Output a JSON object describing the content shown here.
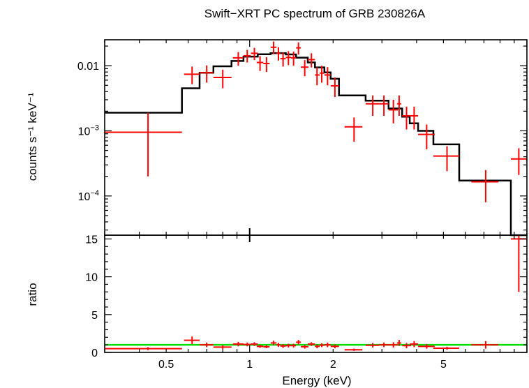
{
  "chart_data": [
    {
      "panel": "spectrum",
      "type": "scatter",
      "title": "Swift−XRT PC spectrum of GRB 230826A",
      "ylabel": "counts s⁻¹ keV⁻¹",
      "y_scale": "log",
      "xlim": [
        0.3,
        10
      ],
      "ylim": [
        2.5e-05,
        0.025
      ],
      "y_ticks": [
        {
          "value": 0.01,
          "label": "0.01",
          "base": "",
          "exp": ""
        },
        {
          "value": 0.001,
          "label": "",
          "base": "10",
          "exp": "−3"
        },
        {
          "value": 0.0001,
          "label": "",
          "base": "10",
          "exp": "−4"
        }
      ],
      "series": [
        {
          "role": "data",
          "color": "#ff0000",
          "points": [
            {
              "x": 0.43,
              "xlo": 0.3,
              "xhi": 0.57,
              "y": 0.00095,
              "ylo": 0.0002,
              "yhi": 0.0019
            },
            {
              "x": 0.62,
              "xlo": 0.58,
              "xhi": 0.66,
              "y": 0.0074,
              "ylo": 0.0052,
              "yhi": 0.0097
            },
            {
              "x": 0.7,
              "xlo": 0.66,
              "xhi": 0.74,
              "y": 0.0078,
              "ylo": 0.0055,
              "yhi": 0.0101
            },
            {
              "x": 0.8,
              "xlo": 0.74,
              "xhi": 0.86,
              "y": 0.0066,
              "ylo": 0.0045,
              "yhi": 0.0087
            },
            {
              "x": 0.91,
              "xlo": 0.87,
              "xhi": 0.95,
              "y": 0.0132,
              "ylo": 0.01,
              "yhi": 0.0162
            },
            {
              "x": 0.98,
              "xlo": 0.95,
              "xhi": 1.01,
              "y": 0.0142,
              "ylo": 0.0112,
              "yhi": 0.0175
            },
            {
              "x": 1.04,
              "xlo": 1.01,
              "xhi": 1.07,
              "y": 0.0155,
              "ylo": 0.0122,
              "yhi": 0.0188
            },
            {
              "x": 1.09,
              "xlo": 1.06,
              "xhi": 1.12,
              "y": 0.0112,
              "ylo": 0.0083,
              "yhi": 0.014
            },
            {
              "x": 1.15,
              "xlo": 1.12,
              "xhi": 1.18,
              "y": 0.0108,
              "ylo": 0.008,
              "yhi": 0.0135
            },
            {
              "x": 1.22,
              "xlo": 1.19,
              "xhi": 1.25,
              "y": 0.0192,
              "ylo": 0.015,
              "yhi": 0.0235
            },
            {
              "x": 1.27,
              "xlo": 1.25,
              "xhi": 1.29,
              "y": 0.0155,
              "ylo": 0.012,
              "yhi": 0.0192
            },
            {
              "x": 1.32,
              "xlo": 1.29,
              "xhi": 1.35,
              "y": 0.0128,
              "ylo": 0.0097,
              "yhi": 0.016
            },
            {
              "x": 1.38,
              "xlo": 1.35,
              "xhi": 1.41,
              "y": 0.0134,
              "ylo": 0.0102,
              "yhi": 0.0167
            },
            {
              "x": 1.44,
              "xlo": 1.41,
              "xhi": 1.47,
              "y": 0.0132,
              "ylo": 0.01,
              "yhi": 0.0165
            },
            {
              "x": 1.5,
              "xlo": 1.47,
              "xhi": 1.53,
              "y": 0.0188,
              "ylo": 0.0148,
              "yhi": 0.0228
            },
            {
              "x": 1.58,
              "xlo": 1.53,
              "xhi": 1.63,
              "y": 0.0095,
              "ylo": 0.0069,
              "yhi": 0.0122
            },
            {
              "x": 1.67,
              "xlo": 1.62,
              "xhi": 1.72,
              "y": 0.0124,
              "ylo": 0.0094,
              "yhi": 0.0155
            },
            {
              "x": 1.75,
              "xlo": 1.72,
              "xhi": 1.79,
              "y": 0.0072,
              "ylo": 0.005,
              "yhi": 0.0094
            },
            {
              "x": 1.82,
              "xlo": 1.79,
              "xhi": 1.86,
              "y": 0.0077,
              "ylo": 0.0055,
              "yhi": 0.01
            },
            {
              "x": 1.91,
              "xlo": 1.86,
              "xhi": 1.96,
              "y": 0.0072,
              "ylo": 0.005,
              "yhi": 0.0095
            },
            {
              "x": 2.03,
              "xlo": 1.96,
              "xhi": 2.1,
              "y": 0.0049,
              "ylo": 0.0033,
              "yhi": 0.0066
            },
            {
              "x": 2.38,
              "xlo": 2.2,
              "xhi": 2.55,
              "y": 0.00115,
              "ylo": 0.00068,
              "yhi": 0.0016
            },
            {
              "x": 2.78,
              "xlo": 2.62,
              "xhi": 2.93,
              "y": 0.0026,
              "ylo": 0.0017,
              "yhi": 0.0035
            },
            {
              "x": 3.05,
              "xlo": 2.93,
              "xhi": 3.17,
              "y": 0.0026,
              "ylo": 0.0017,
              "yhi": 0.0035
            },
            {
              "x": 3.3,
              "xlo": 3.17,
              "xhi": 3.42,
              "y": 0.0021,
              "ylo": 0.0013,
              "yhi": 0.003
            },
            {
              "x": 3.46,
              "xlo": 3.4,
              "xhi": 3.52,
              "y": 0.0026,
              "ylo": 0.0017,
              "yhi": 0.0035
            },
            {
              "x": 3.68,
              "xlo": 3.55,
              "xhi": 3.82,
              "y": 0.0017,
              "ylo": 0.00105,
              "yhi": 0.00235
            },
            {
              "x": 3.92,
              "xlo": 3.78,
              "xhi": 4.05,
              "y": 0.0017,
              "ylo": 0.00105,
              "yhi": 0.00235
            },
            {
              "x": 4.35,
              "xlo": 4.05,
              "xhi": 4.65,
              "y": 0.00088,
              "ylo": 0.00052,
              "yhi": 0.00125
            },
            {
              "x": 5.15,
              "xlo": 4.6,
              "xhi": 5.7,
              "y": 0.00041,
              "ylo": 0.00024,
              "yhi": 0.00058
            },
            {
              "x": 7.1,
              "xlo": 6.3,
              "xhi": 7.9,
              "y": 0.000165,
              "ylo": 8e-05,
              "yhi": 0.00025
            },
            {
              "x": 9.35,
              "xlo": 8.75,
              "xhi": 10.0,
              "y": 0.00037,
              "ylo": 0.00021,
              "yhi": 0.00054
            }
          ]
        },
        {
          "role": "model",
          "color": "#000000",
          "steps": [
            {
              "x0": 0.3,
              "x1": 0.57,
              "y": 0.0019
            },
            {
              "x0": 0.57,
              "x1": 0.66,
              "y": 0.0045
            },
            {
              "x0": 0.66,
              "x1": 0.74,
              "y": 0.0078
            },
            {
              "x0": 0.74,
              "x1": 0.86,
              "y": 0.0098
            },
            {
              "x0": 0.86,
              "x1": 0.95,
              "y": 0.0118
            },
            {
              "x0": 0.95,
              "x1": 1.07,
              "y": 0.0138
            },
            {
              "x0": 1.07,
              "x1": 1.19,
              "y": 0.015
            },
            {
              "x0": 1.19,
              "x1": 1.35,
              "y": 0.0156
            },
            {
              "x0": 1.35,
              "x1": 1.47,
              "y": 0.0149
            },
            {
              "x0": 1.47,
              "x1": 1.62,
              "y": 0.0133
            },
            {
              "x0": 1.62,
              "x1": 1.72,
              "y": 0.0112
            },
            {
              "x0": 1.72,
              "x1": 1.86,
              "y": 0.0094
            },
            {
              "x0": 1.86,
              "x1": 1.96,
              "y": 0.0079
            },
            {
              "x0": 1.96,
              "x1": 2.1,
              "y": 0.0063
            },
            {
              "x0": 2.1,
              "x1": 2.62,
              "y": 0.0035
            },
            {
              "x0": 2.62,
              "x1": 3.17,
              "y": 0.0029
            },
            {
              "x0": 3.17,
              "x1": 3.55,
              "y": 0.0022
            },
            {
              "x0": 3.55,
              "x1": 3.78,
              "y": 0.00165
            },
            {
              "x0": 3.78,
              "x1": 4.05,
              "y": 0.0013
            },
            {
              "x0": 4.05,
              "x1": 4.6,
              "y": 0.001
            },
            {
              "x0": 4.6,
              "x1": 5.7,
              "y": 0.00062
            },
            {
              "x0": 5.7,
              "x1": 8.75,
              "y": 0.000172
            },
            {
              "x0": 8.75,
              "x1": 10.0,
              "y": 2e-05
            }
          ]
        }
      ]
    },
    {
      "panel": "ratio",
      "type": "scatter",
      "ylabel": "ratio",
      "xlabel": "Energy (keV)",
      "xlim": [
        0.3,
        10
      ],
      "ylim": [
        0,
        15.5
      ],
      "y_ticks": [
        0,
        5,
        10,
        15
      ],
      "x_ticks": [
        {
          "value": 0.5,
          "label": "0.5"
        },
        {
          "value": 1,
          "label": "1"
        },
        {
          "value": 2,
          "label": "2"
        },
        {
          "value": 5,
          "label": "5"
        }
      ],
      "reference_line": {
        "y": 1,
        "color": "#00dd00"
      },
      "series": [
        {
          "role": "ratio",
          "color": "#ff0000",
          "points": [
            {
              "x": 0.43,
              "xlo": 0.3,
              "xhi": 0.57,
              "y": 0.5,
              "ylo": 0.3,
              "yhi": 0.7
            },
            {
              "x": 0.62,
              "xlo": 0.58,
              "xhi": 0.66,
              "y": 1.6,
              "ylo": 1.1,
              "yhi": 2.1
            },
            {
              "x": 0.7,
              "xlo": 0.66,
              "xhi": 0.74,
              "y": 1.0,
              "ylo": 0.7,
              "yhi": 1.3
            },
            {
              "x": 0.8,
              "xlo": 0.74,
              "xhi": 0.86,
              "y": 0.7,
              "ylo": 0.45,
              "yhi": 0.95
            },
            {
              "x": 0.91,
              "xlo": 0.87,
              "xhi": 0.95,
              "y": 1.1,
              "ylo": 0.8,
              "yhi": 1.4
            },
            {
              "x": 0.98,
              "xlo": 0.95,
              "xhi": 1.01,
              "y": 1.05,
              "ylo": 0.8,
              "yhi": 1.3
            },
            {
              "x": 1.04,
              "xlo": 1.01,
              "xhi": 1.07,
              "y": 1.1,
              "ylo": 0.85,
              "yhi": 1.35
            },
            {
              "x": 1.09,
              "xlo": 1.06,
              "xhi": 1.12,
              "y": 0.8,
              "ylo": 0.6,
              "yhi": 1.0
            },
            {
              "x": 1.15,
              "xlo": 1.12,
              "xhi": 1.18,
              "y": 0.75,
              "ylo": 0.55,
              "yhi": 0.95
            },
            {
              "x": 1.22,
              "xlo": 1.19,
              "xhi": 1.25,
              "y": 1.25,
              "ylo": 0.95,
              "yhi": 1.55
            },
            {
              "x": 1.27,
              "xlo": 1.25,
              "xhi": 1.29,
              "y": 1.0,
              "ylo": 0.75,
              "yhi": 1.25
            },
            {
              "x": 1.32,
              "xlo": 1.29,
              "xhi": 1.35,
              "y": 0.85,
              "ylo": 0.6,
              "yhi": 1.1
            },
            {
              "x": 1.38,
              "xlo": 1.35,
              "xhi": 1.41,
              "y": 0.9,
              "ylo": 0.65,
              "yhi": 1.15
            },
            {
              "x": 1.44,
              "xlo": 1.41,
              "xhi": 1.47,
              "y": 0.9,
              "ylo": 0.65,
              "yhi": 1.15
            },
            {
              "x": 1.5,
              "xlo": 1.47,
              "xhi": 1.53,
              "y": 1.35,
              "ylo": 1.05,
              "yhi": 1.65
            },
            {
              "x": 1.58,
              "xlo": 1.53,
              "xhi": 1.63,
              "y": 0.75,
              "ylo": 0.5,
              "yhi": 1.0
            },
            {
              "x": 1.67,
              "xlo": 1.62,
              "xhi": 1.72,
              "y": 1.1,
              "ylo": 0.85,
              "yhi": 1.35
            },
            {
              "x": 1.75,
              "xlo": 1.72,
              "xhi": 1.79,
              "y": 0.8,
              "ylo": 0.55,
              "yhi": 1.05
            },
            {
              "x": 1.82,
              "xlo": 1.79,
              "xhi": 1.86,
              "y": 0.95,
              "ylo": 0.7,
              "yhi": 1.2
            },
            {
              "x": 1.91,
              "xlo": 1.86,
              "xhi": 1.96,
              "y": 1.0,
              "ylo": 0.7,
              "yhi": 1.3
            },
            {
              "x": 2.03,
              "xlo": 1.96,
              "xhi": 2.1,
              "y": 0.8,
              "ylo": 0.55,
              "yhi": 1.05
            },
            {
              "x": 2.38,
              "xlo": 2.2,
              "xhi": 2.55,
              "y": 0.35,
              "ylo": 0.2,
              "yhi": 0.5
            },
            {
              "x": 2.78,
              "xlo": 2.62,
              "xhi": 2.93,
              "y": 0.95,
              "ylo": 0.65,
              "yhi": 1.25
            },
            {
              "x": 3.05,
              "xlo": 2.93,
              "xhi": 3.17,
              "y": 1.0,
              "ylo": 0.7,
              "yhi": 1.3
            },
            {
              "x": 3.3,
              "xlo": 3.17,
              "xhi": 3.42,
              "y": 1.0,
              "ylo": 0.65,
              "yhi": 1.35
            },
            {
              "x": 3.46,
              "xlo": 3.4,
              "xhi": 3.52,
              "y": 1.25,
              "ylo": 0.85,
              "yhi": 1.65
            },
            {
              "x": 3.68,
              "xlo": 3.55,
              "xhi": 3.82,
              "y": 0.9,
              "ylo": 0.55,
              "yhi": 1.25
            },
            {
              "x": 3.92,
              "xlo": 3.78,
              "xhi": 4.05,
              "y": 1.1,
              "ylo": 0.7,
              "yhi": 1.5
            },
            {
              "x": 4.35,
              "xlo": 4.05,
              "xhi": 4.65,
              "y": 0.8,
              "ylo": 0.5,
              "yhi": 1.1
            },
            {
              "x": 5.15,
              "xlo": 4.6,
              "xhi": 5.7,
              "y": 0.55,
              "ylo": 0.35,
              "yhi": 0.75
            },
            {
              "x": 7.1,
              "xlo": 6.3,
              "xhi": 7.9,
              "y": 1.0,
              "ylo": 0.5,
              "yhi": 1.5
            },
            {
              "x": 9.35,
              "xlo": 8.75,
              "xhi": 10.0,
              "y": 15.0,
              "ylo": 8.0,
              "yhi": 15.5
            }
          ]
        }
      ]
    }
  ]
}
